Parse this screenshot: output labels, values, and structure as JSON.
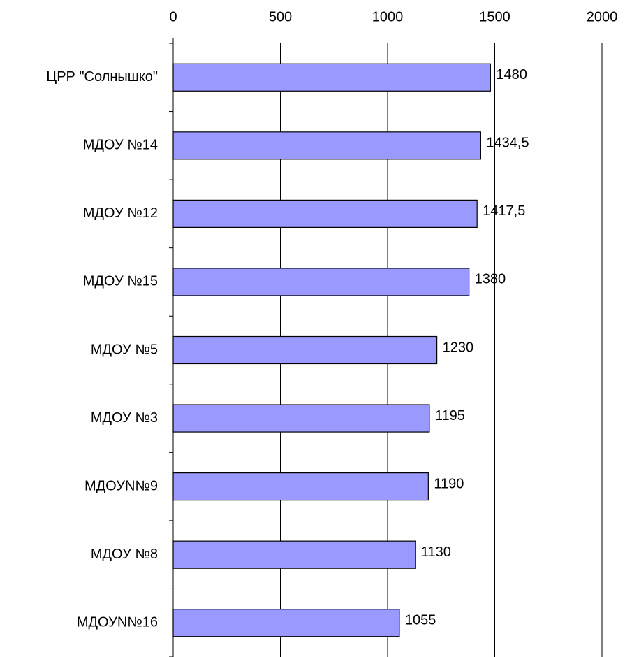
{
  "chart_data": {
    "type": "bar",
    "orientation": "horizontal",
    "categories": [
      "ЦРР \"Солнышко\"",
      "МДОУ №14",
      "МДОУ №12",
      "МДОУ №15",
      "МДОУ №5",
      "МДОУ №3",
      "МДОУN№9",
      "МДОУ №8",
      "МДОУN№16"
    ],
    "values": [
      1480,
      1434.5,
      1417.5,
      1380,
      1230,
      1195,
      1190,
      1130,
      1055
    ],
    "value_labels": [
      "1480",
      "1434,5",
      "1417,5",
      "1380",
      "1230",
      "1195",
      "1190",
      "1130",
      "1055"
    ],
    "color": "#9999ff",
    "xlim": [
      0,
      2000
    ],
    "xticks": [
      0,
      500,
      1000,
      1500,
      2000
    ],
    "grid": true
  }
}
